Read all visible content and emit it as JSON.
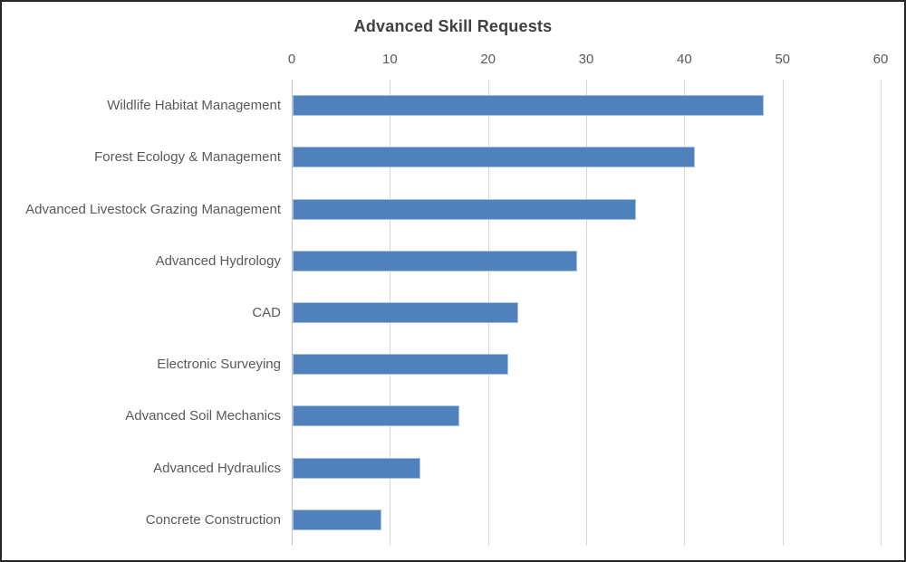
{
  "window": {
    "background": "#ffffff",
    "border_color": "#262626"
  },
  "chart_data": {
    "type": "bar",
    "orientation": "horizontal",
    "title": "Advanced Skill Requests",
    "categories": [
      "Wildlife Habitat Management",
      "Forest Ecology & Management",
      "Advanced Livestock Grazing Management",
      "Advanced Hydrology",
      "CAD",
      "Electronic Surveying",
      "Advanced Soil Mechanics",
      "Advanced Hydraulics",
      "Concrete Construction"
    ],
    "values": [
      48,
      41,
      35,
      29,
      23,
      22,
      17,
      13,
      9
    ],
    "x_ticks": [
      "0",
      "10",
      "20",
      "30",
      "40",
      "50",
      "60"
    ],
    "xlim": [
      0,
      60
    ],
    "xlabel": "",
    "ylabel": "",
    "axis_position": "top",
    "grid": "vertical-major",
    "legend": "none",
    "data_labels": "none",
    "colors": {
      "bar_fill": "#4F81BD",
      "bar_border": "#A7C0DE",
      "gridline": "#D6D6D6",
      "axis_line": "#C3C3C3",
      "title_text": "#404040",
      "label_text": "#595959"
    }
  }
}
